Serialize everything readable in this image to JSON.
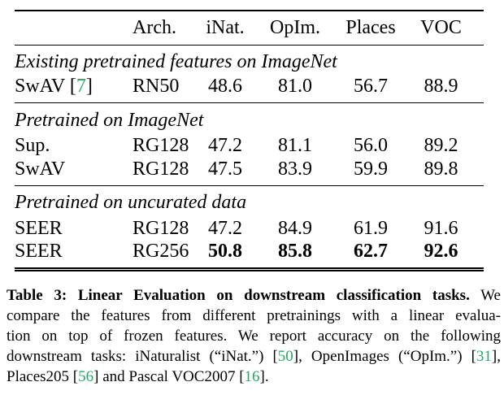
{
  "colors": {
    "citation_green": "#2aa765",
    "text": "#000000",
    "background": "#ffffff"
  },
  "table": {
    "citation_brackets": [
      "[",
      "]"
    ],
    "columns": [
      {
        "label": "",
        "align": "left"
      },
      {
        "label": "Arch.",
        "align": "left"
      },
      {
        "label": "iNat.",
        "align": "center"
      },
      {
        "label": "OpIm.",
        "align": "center"
      },
      {
        "label": "Places",
        "align": "center"
      },
      {
        "label": "VOC",
        "align": "center"
      }
    ],
    "sections": [
      {
        "header": "Existing pretrained features on ImageNet",
        "rows": [
          {
            "method": "SwAV",
            "cite": "7",
            "arch": "RN50",
            "values": [
              "48.6",
              "81.0",
              "56.7",
              "88.9"
            ],
            "bold_values": false
          }
        ]
      },
      {
        "header": "Pretrained on ImageNet",
        "rows": [
          {
            "method": "Sup.",
            "cite": "",
            "arch": "RG128",
            "values": [
              "47.2",
              "81.1",
              "56.0",
              "89.2"
            ],
            "bold_values": false
          },
          {
            "method": "SwAV",
            "cite": "",
            "arch": "RG128",
            "values": [
              "47.5",
              "83.9",
              "59.9",
              "89.8"
            ],
            "bold_values": false
          }
        ]
      },
      {
        "header": "Pretrained on uncurated data",
        "rows": [
          {
            "method": "SEER",
            "cite": "",
            "arch": "RG128",
            "values": [
              "47.2",
              "84.9",
              "61.9",
              "91.6"
            ],
            "bold_values": false
          },
          {
            "method": "SEER",
            "cite": "",
            "arch": "RG256",
            "values": [
              "50.8",
              "85.8",
              "62.7",
              "92.6"
            ],
            "bold_values": true
          }
        ]
      }
    ]
  },
  "caption": {
    "lines": [
      {
        "justify": true,
        "segments": [
          {
            "text": "Table 3: Linear Evaluation on downstream classification tasks.",
            "bold": true
          },
          {
            "text": " We",
            "bold": false
          }
        ]
      },
      {
        "justify": true,
        "segments": [
          {
            "text": "compare the features from different pretrainings with a linear evalua-",
            "bold": false
          }
        ]
      },
      {
        "justify": true,
        "segments": [
          {
            "text": "tion on top of frozen features. We report accuracy on the following",
            "bold": false
          }
        ]
      },
      {
        "justify": true,
        "segments": [
          {
            "text": "downstream tasks: iNaturalist (“iNat.”) [",
            "bold": false
          },
          {
            "text": "50",
            "cite": true
          },
          {
            "text": "], OpenImages (“OpIm.”) [",
            "bold": false
          },
          {
            "text": "31",
            "cite": true
          },
          {
            "text": "],",
            "bold": false
          }
        ]
      },
      {
        "justify": false,
        "segments": [
          {
            "text": "Places205 [",
            "bold": false
          },
          {
            "text": "56",
            "cite": true
          },
          {
            "text": "] and Pascal VOC2007 [",
            "bold": false
          },
          {
            "text": "16",
            "cite": true
          },
          {
            "text": "].",
            "bold": false
          }
        ]
      }
    ]
  }
}
